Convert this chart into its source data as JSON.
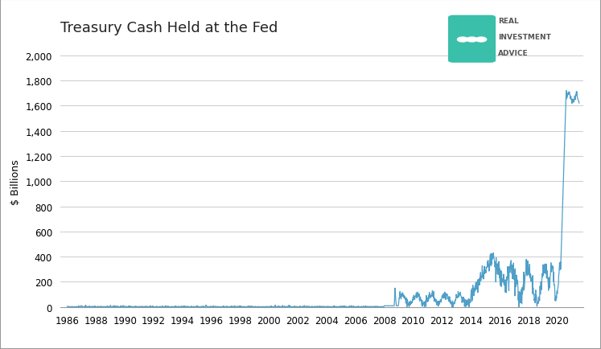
{
  "title": "Treasury Cash Held at the Fed",
  "ylabel": "$ Billions",
  "line_color": "#4F9FC8",
  "background_color": "#ffffff",
  "plot_bg_color": "#ffffff",
  "grid_color": "#cccccc",
  "border_color": "#999999",
  "ylim": [
    0,
    2000
  ],
  "yticks": [
    0,
    200,
    400,
    600,
    800,
    1000,
    1200,
    1400,
    1600,
    1800,
    2000
  ],
  "xtick_years": [
    1986,
    1988,
    1990,
    1992,
    1994,
    1996,
    1998,
    2000,
    2002,
    2004,
    2006,
    2008,
    2010,
    2012,
    2014,
    2016,
    2018,
    2020
  ],
  "logo_text_line1": "REAL",
  "logo_text_line2": "INVESTMENT",
  "logo_text_line3": "ADVICE",
  "logo_color": "#3ABFAA",
  "logo_text_color": "#555555"
}
